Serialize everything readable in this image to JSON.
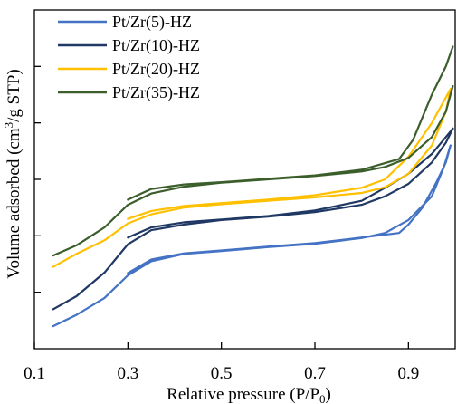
{
  "chart_data": {
    "type": "line",
    "title": "",
    "xlabel": "Relative pressure (P/P",
    "xlabel_sub": "0",
    "xlabel_close": ")",
    "ylabel": "Volume adsorbed (cm",
    "ylabel_sup": "3",
    "ylabel_tail": "/g STP)",
    "xlim": [
      0.1,
      1.0
    ],
    "ylim": [
      0,
      6
    ],
    "x_ticks": [
      0.1,
      0.3,
      0.5,
      0.7,
      0.9
    ],
    "x_tick_labels": [
      "0.1",
      "0.3",
      "0.5",
      "0.7",
      "0.9"
    ],
    "y_ticks": [
      1,
      2,
      3,
      4,
      5
    ],
    "y_tick_labels_shown": false,
    "grid": false,
    "legend_position": "top-left",
    "series": [
      {
        "name": "Pt/Zr(5)-HZ",
        "color": "#4472C4",
        "adsorption": [
          [
            0.14,
            0.4
          ],
          [
            0.19,
            0.6
          ],
          [
            0.25,
            0.9
          ],
          [
            0.3,
            1.3
          ],
          [
            0.35,
            1.55
          ],
          [
            0.42,
            1.68
          ],
          [
            0.5,
            1.73
          ],
          [
            0.6,
            1.8
          ],
          [
            0.7,
            1.86
          ],
          [
            0.8,
            1.96
          ],
          [
            0.85,
            2.05
          ],
          [
            0.9,
            2.28
          ],
          [
            0.95,
            2.7
          ],
          [
            0.975,
            3.2
          ],
          [
            0.99,
            3.6
          ]
        ],
        "desorption": [
          [
            0.99,
            3.6
          ],
          [
            0.98,
            3.3
          ],
          [
            0.96,
            2.95
          ],
          [
            0.93,
            2.5
          ],
          [
            0.9,
            2.2
          ],
          [
            0.88,
            2.05
          ],
          [
            0.8,
            1.97
          ],
          [
            0.7,
            1.87
          ],
          [
            0.6,
            1.81
          ],
          [
            0.5,
            1.74
          ],
          [
            0.42,
            1.69
          ],
          [
            0.35,
            1.58
          ],
          [
            0.3,
            1.34
          ]
        ]
      },
      {
        "name": "Pt/Zr(10)-HZ",
        "color": "#203864",
        "adsorption": [
          [
            0.14,
            0.7
          ],
          [
            0.19,
            0.93
          ],
          [
            0.25,
            1.35
          ],
          [
            0.3,
            1.85
          ],
          [
            0.35,
            2.1
          ],
          [
            0.42,
            2.2
          ],
          [
            0.5,
            2.28
          ],
          [
            0.6,
            2.34
          ],
          [
            0.7,
            2.42
          ],
          [
            0.8,
            2.55
          ],
          [
            0.85,
            2.7
          ],
          [
            0.9,
            2.92
          ],
          [
            0.95,
            3.3
          ],
          [
            0.98,
            3.65
          ],
          [
            0.995,
            3.9
          ]
        ],
        "desorption": [
          [
            0.995,
            3.9
          ],
          [
            0.98,
            3.75
          ],
          [
            0.95,
            3.45
          ],
          [
            0.9,
            3.1
          ],
          [
            0.85,
            2.85
          ],
          [
            0.8,
            2.62
          ],
          [
            0.7,
            2.45
          ],
          [
            0.6,
            2.35
          ],
          [
            0.5,
            2.29
          ],
          [
            0.42,
            2.24
          ],
          [
            0.35,
            2.15
          ],
          [
            0.3,
            1.97
          ]
        ]
      },
      {
        "name": "Pt/Zr(20)-HZ",
        "color": "#FFC000",
        "adsorption": [
          [
            0.14,
            1.45
          ],
          [
            0.19,
            1.68
          ],
          [
            0.25,
            1.92
          ],
          [
            0.3,
            2.22
          ],
          [
            0.35,
            2.38
          ],
          [
            0.42,
            2.5
          ],
          [
            0.5,
            2.56
          ],
          [
            0.6,
            2.62
          ],
          [
            0.7,
            2.68
          ],
          [
            0.8,
            2.76
          ],
          [
            0.85,
            2.86
          ],
          [
            0.9,
            3.1
          ],
          [
            0.95,
            3.6
          ],
          [
            0.98,
            4.2
          ],
          [
            0.99,
            4.6
          ]
        ],
        "desorption": [
          [
            0.99,
            4.6
          ],
          [
            0.98,
            4.45
          ],
          [
            0.95,
            4.0
          ],
          [
            0.9,
            3.4
          ],
          [
            0.85,
            3.0
          ],
          [
            0.8,
            2.85
          ],
          [
            0.7,
            2.72
          ],
          [
            0.6,
            2.64
          ],
          [
            0.5,
            2.58
          ],
          [
            0.42,
            2.53
          ],
          [
            0.35,
            2.44
          ],
          [
            0.3,
            2.3
          ]
        ]
      },
      {
        "name": "Pt/Zr(35)-HZ",
        "color": "#3B5E2B",
        "adsorption": [
          [
            0.14,
            1.65
          ],
          [
            0.19,
            1.83
          ],
          [
            0.25,
            2.15
          ],
          [
            0.3,
            2.55
          ],
          [
            0.35,
            2.75
          ],
          [
            0.42,
            2.87
          ],
          [
            0.5,
            2.94
          ],
          [
            0.6,
            3.0
          ],
          [
            0.7,
            3.06
          ],
          [
            0.8,
            3.14
          ],
          [
            0.85,
            3.22
          ],
          [
            0.9,
            3.38
          ],
          [
            0.95,
            3.75
          ],
          [
            0.98,
            4.2
          ],
          [
            0.995,
            4.65
          ]
        ],
        "desorption": [
          [
            0.995,
            5.35
          ],
          [
            0.98,
            5.0
          ],
          [
            0.95,
            4.5
          ],
          [
            0.91,
            3.7
          ],
          [
            0.88,
            3.36
          ],
          [
            0.8,
            3.17
          ],
          [
            0.7,
            3.07
          ],
          [
            0.6,
            3.01
          ],
          [
            0.5,
            2.95
          ],
          [
            0.42,
            2.91
          ],
          [
            0.35,
            2.83
          ],
          [
            0.3,
            2.64
          ]
        ]
      }
    ]
  }
}
